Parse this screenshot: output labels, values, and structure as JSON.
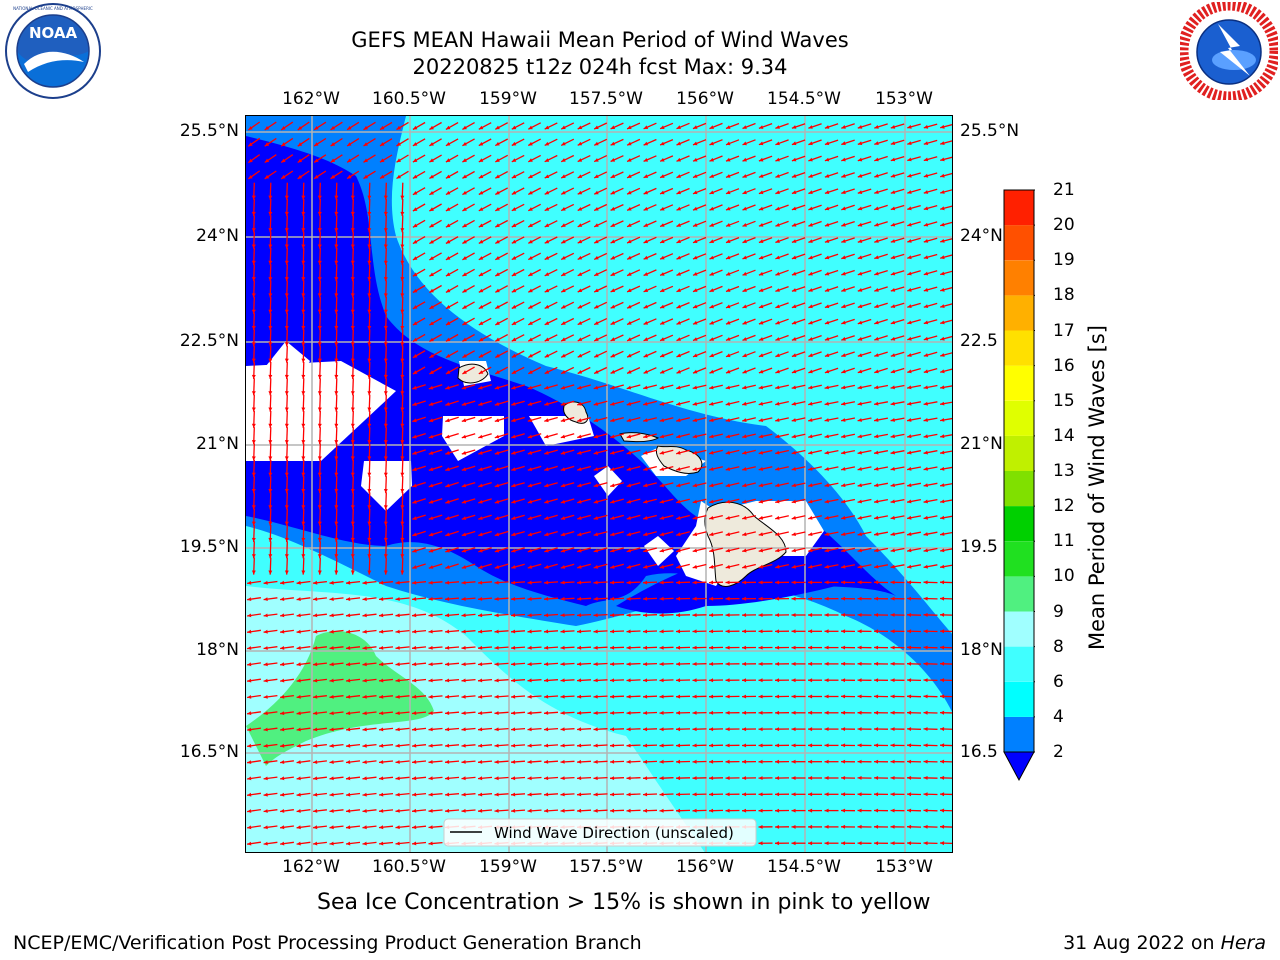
{
  "header": {
    "title_line1": "GEFS MEAN Hawaii Mean Period of Wind Waves",
    "title_line2": "20220825 t12z 024h fcst   Max: 9.34"
  },
  "logos": {
    "left": {
      "name": "noaa-logo",
      "text": "NOAA",
      "ring_text": "NATIONAL OCEANIC AND ATMOSPHERIC ADMINISTRATION · U.S. DEPARTMENT OF COMMERCE"
    },
    "right": {
      "name": "nws-logo",
      "ring_text": "NATIONAL WEATHER SERVICE"
    }
  },
  "map": {
    "lon_labels": [
      "162°W",
      "160.5°W",
      "159°W",
      "157.5°W",
      "156°W",
      "154.5°W",
      "153°W"
    ],
    "lat_labels": [
      "25.5°N",
      "24°N",
      "22.5°N",
      "21°N",
      "19.5°N",
      "18°N",
      "16.5°N"
    ],
    "lat_labels_right": [
      "25.5°N",
      "24°N",
      "22.5",
      "21°N",
      "19.5",
      "18°N",
      "16.5"
    ],
    "legend": "Wind Wave Direction (unscaled)",
    "arrow_color": "#ff0000"
  },
  "colorbar": {
    "title": "Mean Period of Wind Waves [s]",
    "ticks": [
      "2",
      "4",
      "6",
      "8",
      "9",
      "10",
      "11",
      "12",
      "13",
      "14",
      "15",
      "16",
      "17",
      "18",
      "19",
      "20",
      "21"
    ],
    "colors": [
      "#0000ff",
      "#0080ff",
      "#00ffff",
      "#40ffff",
      "#a0ffff",
      "#50f080",
      "#20e020",
      "#00d000",
      "#80e000",
      "#c0f000",
      "#e0ff00",
      "#ffff00",
      "#ffe000",
      "#ffb000",
      "#ff8000",
      "#ff5000",
      "#ff2000",
      "#ff0000"
    ]
  },
  "notes": {
    "ice": "Sea Ice Concentration > 15% is shown in pink to yellow"
  },
  "footer": {
    "left": "NCEP/EMC/Verification Post Processing Product Generation Branch",
    "right_date": "31 Aug 2022 on ",
    "right_host": "Hera"
  }
}
